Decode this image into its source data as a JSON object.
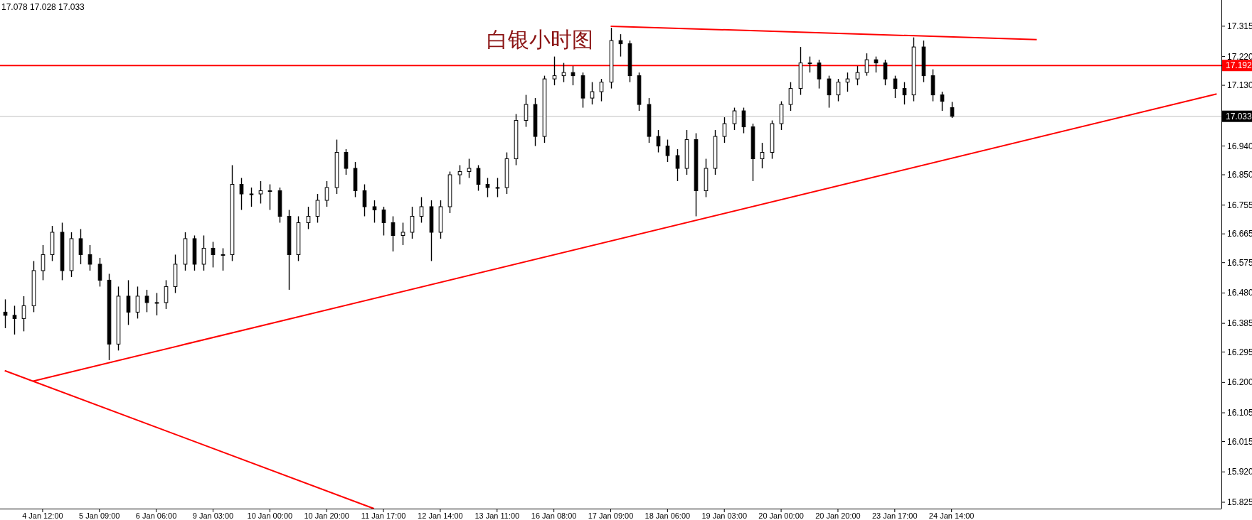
{
  "chart_data": {
    "type": "candlestick",
    "title": "白银小时图",
    "annotations": [
      "17.078 17.028 17.033"
    ],
    "categories": [
      null,
      null,
      null,
      null,
      "4 Jan 12:00",
      null,
      null,
      null,
      null,
      null,
      "5 Jan 09:00",
      null,
      null,
      null,
      null,
      null,
      "6 Jan 06:00",
      null,
      null,
      null,
      null,
      null,
      "9 Jan 03:00",
      null,
      null,
      null,
      null,
      null,
      "10 Jan 00:00",
      null,
      null,
      null,
      null,
      null,
      "10 Jan 20:00",
      null,
      null,
      null,
      null,
      null,
      "11 Jan 17:00",
      null,
      null,
      null,
      null,
      null,
      "12 Jan 14:00",
      null,
      null,
      null,
      null,
      null,
      "13 Jan 11:00",
      null,
      null,
      null,
      null,
      null,
      "16 Jan 08:00",
      null,
      null,
      null,
      null,
      null,
      "17 Jan 09:00",
      null,
      null,
      null,
      null,
      null,
      "18 Jan 06:00",
      null,
      null,
      null,
      null,
      null,
      "19 Jan 03:00",
      null,
      null,
      null,
      null,
      null,
      "20 Jan 00:00",
      null,
      null,
      null,
      null,
      null,
      "20 Jan 20:00",
      null,
      null,
      null,
      null,
      null,
      "23 Jan 17:00",
      null,
      null,
      null,
      null,
      null,
      "24 Jan 14:00",
      null,
      null,
      null,
      null,
      null,
      null,
      null,
      null,
      null,
      null,
      null,
      null,
      null,
      null,
      null,
      null,
      null,
      null,
      null,
      null,
      null,
      null,
      null,
      null,
      null,
      null,
      null,
      null
    ],
    "ohlc": [
      [
        16.42,
        16.46,
        16.37,
        16.41
      ],
      [
        16.41,
        16.44,
        16.35,
        16.4
      ],
      [
        16.4,
        16.47,
        16.36,
        16.44
      ],
      [
        16.44,
        16.58,
        16.42,
        16.55
      ],
      [
        16.55,
        16.63,
        16.52,
        16.6
      ],
      [
        16.6,
        16.69,
        16.58,
        16.67
      ],
      [
        16.67,
        16.7,
        16.52,
        16.55
      ],
      [
        16.55,
        16.67,
        16.53,
        16.65
      ],
      [
        16.65,
        16.68,
        16.57,
        16.6
      ],
      [
        16.6,
        16.63,
        16.55,
        16.57
      ],
      [
        16.57,
        16.59,
        16.5,
        16.52
      ],
      [
        16.52,
        16.54,
        16.27,
        16.32
      ],
      [
        16.32,
        16.5,
        16.3,
        16.47
      ],
      [
        16.47,
        16.52,
        16.38,
        16.42
      ],
      [
        16.42,
        16.5,
        16.4,
        16.47
      ],
      [
        16.47,
        16.49,
        16.42,
        16.45
      ],
      [
        16.45,
        16.48,
        16.41,
        16.45
      ],
      [
        16.45,
        16.52,
        16.43,
        16.5
      ],
      [
        16.5,
        16.6,
        16.48,
        16.57
      ],
      [
        16.57,
        16.67,
        16.55,
        16.65
      ],
      [
        16.65,
        16.66,
        16.55,
        16.57
      ],
      [
        16.57,
        16.66,
        16.55,
        16.62
      ],
      [
        16.62,
        16.64,
        16.56,
        16.6
      ],
      [
        16.6,
        16.62,
        16.55,
        16.6
      ],
      [
        16.6,
        16.88,
        16.58,
        16.82
      ],
      [
        16.82,
        16.84,
        16.74,
        16.79
      ],
      [
        16.79,
        16.81,
        16.75,
        16.79
      ],
      [
        16.79,
        16.83,
        16.76,
        16.8
      ],
      [
        16.8,
        16.82,
        16.74,
        16.8
      ],
      [
        16.8,
        16.81,
        16.7,
        16.72
      ],
      [
        16.72,
        16.74,
        16.49,
        16.6
      ],
      [
        16.6,
        16.72,
        16.58,
        16.7
      ],
      [
        16.7,
        16.75,
        16.68,
        16.72
      ],
      [
        16.72,
        16.79,
        16.7,
        16.77
      ],
      [
        16.77,
        16.83,
        16.75,
        16.81
      ],
      [
        16.81,
        16.96,
        16.79,
        16.92
      ],
      [
        16.92,
        16.93,
        16.85,
        16.87
      ],
      [
        16.87,
        16.89,
        16.78,
        16.8
      ],
      [
        16.8,
        16.82,
        16.72,
        16.75
      ],
      [
        16.75,
        16.77,
        16.7,
        16.74
      ],
      [
        16.74,
        16.75,
        16.66,
        16.7
      ],
      [
        16.7,
        16.72,
        16.61,
        16.66
      ],
      [
        16.66,
        16.7,
        16.63,
        16.67
      ],
      [
        16.67,
        16.75,
        16.65,
        16.72
      ],
      [
        16.72,
        16.78,
        16.7,
        16.75
      ],
      [
        16.75,
        16.77,
        16.58,
        16.67
      ],
      [
        16.67,
        16.77,
        16.65,
        16.75
      ],
      [
        16.75,
        16.86,
        16.73,
        16.85
      ],
      [
        16.85,
        16.88,
        16.82,
        16.86
      ],
      [
        16.86,
        16.9,
        16.84,
        16.87
      ],
      [
        16.87,
        16.88,
        16.8,
        16.82
      ],
      [
        16.82,
        16.84,
        16.78,
        16.81
      ],
      [
        16.81,
        16.84,
        16.78,
        16.81
      ],
      [
        16.81,
        16.92,
        16.79,
        16.9
      ],
      [
        16.9,
        17.04,
        16.88,
        17.02
      ],
      [
        17.02,
        17.1,
        17.0,
        17.07
      ],
      [
        17.07,
        17.09,
        16.94,
        16.97
      ],
      [
        16.97,
        17.16,
        16.95,
        17.15
      ],
      [
        17.15,
        17.22,
        17.13,
        17.16
      ],
      [
        17.16,
        17.2,
        17.14,
        17.17
      ],
      [
        17.17,
        17.19,
        17.13,
        17.16
      ],
      [
        17.16,
        17.17,
        17.06,
        17.09
      ],
      [
        17.09,
        17.14,
        17.07,
        17.11
      ],
      [
        17.11,
        17.15,
        17.08,
        17.14
      ],
      [
        17.14,
        17.31,
        17.12,
        17.27
      ],
      [
        17.27,
        17.29,
        17.22,
        17.26
      ],
      [
        17.26,
        17.27,
        17.14,
        17.16
      ],
      [
        17.16,
        17.17,
        17.05,
        17.07
      ],
      [
        17.07,
        17.09,
        16.95,
        16.97
      ],
      [
        16.97,
        16.99,
        16.92,
        16.94
      ],
      [
        16.94,
        16.96,
        16.89,
        16.91
      ],
      [
        16.91,
        16.93,
        16.83,
        16.87
      ],
      [
        16.87,
        16.99,
        16.85,
        16.96
      ],
      [
        16.96,
        16.98,
        16.72,
        16.8
      ],
      [
        16.8,
        16.9,
        16.78,
        16.87
      ],
      [
        16.87,
        16.99,
        16.85,
        16.97
      ],
      [
        16.97,
        17.03,
        16.95,
        17.01
      ],
      [
        17.01,
        17.06,
        16.99,
        17.05
      ],
      [
        17.05,
        17.06,
        16.98,
        17.0
      ],
      [
        17.0,
        17.01,
        16.83,
        16.9
      ],
      [
        16.9,
        16.95,
        16.87,
        16.92
      ],
      [
        16.92,
        17.02,
        16.9,
        17.01
      ],
      [
        17.01,
        17.08,
        16.99,
        17.07
      ],
      [
        17.07,
        17.14,
        17.05,
        17.12
      ],
      [
        17.12,
        17.25,
        17.1,
        17.2
      ],
      [
        17.2,
        17.22,
        17.17,
        17.2
      ],
      [
        17.2,
        17.21,
        17.12,
        17.15
      ],
      [
        17.15,
        17.16,
        17.06,
        17.1
      ],
      [
        17.1,
        17.15,
        17.08,
        17.14
      ],
      [
        17.14,
        17.17,
        17.11,
        17.15
      ],
      [
        17.15,
        17.19,
        17.13,
        17.17
      ],
      [
        17.17,
        17.23,
        17.16,
        17.21
      ],
      [
        17.21,
        17.22,
        17.17,
        17.2
      ],
      [
        17.2,
        17.21,
        17.13,
        17.15
      ],
      [
        17.15,
        17.16,
        17.09,
        17.12
      ],
      [
        17.12,
        17.14,
        17.07,
        17.1
      ],
      [
        17.1,
        17.28,
        17.08,
        17.25
      ],
      [
        17.25,
        17.27,
        17.14,
        17.16
      ],
      [
        17.16,
        17.18,
        17.08,
        17.1
      ],
      [
        17.1,
        17.11,
        17.05,
        17.08
      ],
      [
        17.06,
        17.078,
        17.028,
        17.033
      ],
      null,
      null,
      null,
      null,
      null,
      null,
      null,
      null,
      null,
      null,
      null,
      null,
      null,
      null,
      null,
      null,
      null,
      null,
      null,
      null,
      null,
      null,
      null,
      null,
      null,
      null,
      null,
      null
    ],
    "series": [
      {
        "type": "line",
        "color": "#ff0000",
        "values": [
          null,
          null,
          null,
          16.204,
          null,
          null,
          null,
          null,
          null,
          null,
          null,
          null,
          null,
          null,
          null,
          null,
          null,
          null,
          null,
          null,
          null,
          null,
          null,
          null,
          null,
          null,
          null,
          null,
          null,
          null,
          null,
          null,
          null,
          null,
          null,
          null,
          null,
          null,
          null,
          null,
          null,
          null,
          null,
          null,
          null,
          null,
          null,
          null,
          null,
          null,
          null,
          null,
          null,
          null,
          null,
          null,
          null,
          null,
          null,
          null,
          null,
          null,
          null,
          null,
          null,
          null,
          null,
          null,
          null,
          null,
          null,
          null,
          null,
          null,
          null,
          null,
          null,
          null,
          null,
          null,
          null,
          null,
          null,
          null,
          null,
          null,
          null,
          null,
          null,
          null,
          null,
          null,
          null,
          null,
          null,
          null,
          null,
          null,
          null,
          null,
          null,
          null,
          null,
          null,
          null,
          null,
          null,
          null,
          null,
          null,
          null,
          null,
          null,
          null,
          null,
          null,
          null,
          null,
          null,
          null,
          null,
          null,
          null,
          null,
          null,
          null,
          null,
          null,
          17.103
        ]
      },
      {
        "type": "line",
        "color": "#ff0000",
        "values": [
          16.237,
          null,
          null,
          null,
          null,
          null,
          null,
          null,
          null,
          null,
          null,
          null,
          null,
          null,
          null,
          null,
          null,
          null,
          null,
          null,
          null,
          null,
          null,
          null,
          null,
          null,
          null,
          null,
          null,
          null,
          null,
          null,
          null,
          null,
          null,
          null,
          null,
          null,
          null,
          15.805,
          null,
          null,
          null,
          null,
          null,
          null,
          null,
          null,
          null,
          null,
          null,
          null,
          null,
          null,
          null,
          null,
          null,
          null,
          null,
          null,
          null,
          null,
          null,
          null,
          null,
          null,
          null,
          null,
          null,
          null,
          null,
          null,
          null,
          null,
          null,
          null,
          null,
          null,
          null,
          null,
          null,
          null,
          null,
          null,
          null,
          null,
          null,
          null,
          null,
          null,
          null,
          null,
          null,
          null,
          null,
          null,
          null,
          null,
          null,
          null,
          null,
          null,
          null,
          null,
          null,
          null,
          null,
          null,
          null,
          null,
          null,
          null,
          null,
          null,
          null,
          null,
          null,
          null,
          null,
          null,
          null,
          null,
          null,
          null,
          null,
          null,
          null,
          null,
          null
        ]
      },
      {
        "type": "line",
        "color": "#ff0000",
        "values": [
          null,
          null,
          null,
          null,
          null,
          null,
          null,
          null,
          null,
          null,
          null,
          null,
          null,
          null,
          null,
          null,
          null,
          null,
          null,
          null,
          null,
          null,
          null,
          null,
          null,
          null,
          null,
          null,
          null,
          null,
          null,
          null,
          null,
          null,
          null,
          null,
          null,
          null,
          null,
          null,
          null,
          null,
          null,
          null,
          null,
          null,
          null,
          null,
          null,
          null,
          null,
          null,
          null,
          null,
          null,
          null,
          null,
          null,
          null,
          null,
          null,
          null,
          null,
          null,
          17.315,
          null,
          null,
          null,
          null,
          null,
          null,
          null,
          null,
          null,
          null,
          null,
          null,
          null,
          null,
          null,
          null,
          null,
          null,
          null,
          null,
          null,
          null,
          null,
          null,
          null,
          null,
          null,
          null,
          null,
          null,
          null,
          null,
          null,
          null,
          null,
          null,
          null,
          null,
          null,
          null,
          null,
          null,
          null,
          null,
          17.273,
          null,
          null,
          null,
          null,
          null,
          null,
          null,
          null,
          null,
          null,
          null,
          null,
          null,
          null,
          null,
          null,
          null,
          null,
          null
        ]
      }
    ],
    "ylim": [
      15.805,
      17.397
    ],
    "yticks": [
      {
        "value": 17.315,
        "label": "17.315"
      },
      {
        "value": 17.22,
        "label": "17.220"
      },
      {
        "value": 17.13,
        "label": "17.130"
      },
      {
        "value": 16.94,
        "label": "16.940"
      },
      {
        "value": 16.85,
        "label": "16.850"
      },
      {
        "value": 16.755,
        "label": "16.755"
      },
      {
        "value": 16.665,
        "label": "16.665"
      },
      {
        "value": 16.575,
        "label": "16.575"
      },
      {
        "value": 16.48,
        "label": "16.480"
      },
      {
        "value": 16.385,
        "label": "16.385"
      },
      {
        "value": 16.295,
        "label": "16.295"
      },
      {
        "value": 16.2,
        "label": "16.200"
      },
      {
        "value": 16.105,
        "label": "16.105"
      },
      {
        "value": 16.015,
        "label": "16.015"
      },
      {
        "value": 15.92,
        "label": "15.920"
      },
      {
        "value": 15.825,
        "label": "15.825"
      }
    ],
    "ref_lines": [
      {
        "axis": "y",
        "value": 17.192,
        "label": "17.192",
        "color": "#ff0000"
      },
      {
        "axis": "y",
        "value": 17.033,
        "label": "17.033",
        "color": "#c0c0c0"
      }
    ]
  }
}
